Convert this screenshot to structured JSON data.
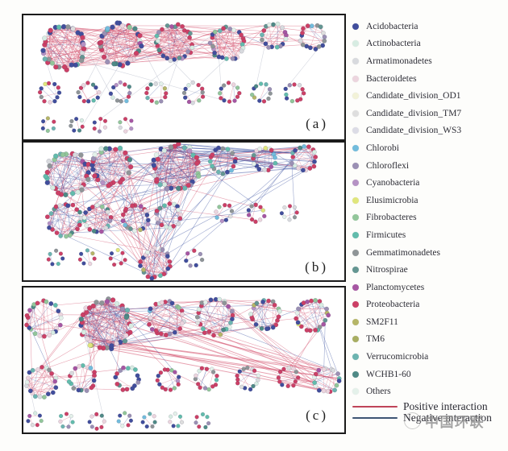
{
  "figure": {
    "watermark_text": "中国环联"
  },
  "legend": {
    "taxa": [
      {
        "name": "Acidobacteria",
        "color": "#414e9c"
      },
      {
        "name": "Actinobacteria",
        "color": "#d7ece2"
      },
      {
        "name": "Armatimonadetes",
        "color": "#d8dade"
      },
      {
        "name": "Bacteroidetes",
        "color": "#ecd5de"
      },
      {
        "name": "Candidate_division_OD1",
        "color": "#f2f2d8"
      },
      {
        "name": "Candidate_division_TM7",
        "color": "#dedede"
      },
      {
        "name": "Candidate_division_WS3",
        "color": "#dcdce6"
      },
      {
        "name": "Chlorobi",
        "color": "#72bcdc"
      },
      {
        "name": "Chloroflexi",
        "color": "#9b90b4"
      },
      {
        "name": "Cyanobacteria",
        "color": "#b592c4"
      },
      {
        "name": "Elusimicrobia",
        "color": "#e0e67c"
      },
      {
        "name": "Fibrobacteres",
        "color": "#92c69a"
      },
      {
        "name": "Firmicutes",
        "color": "#62bcac"
      },
      {
        "name": "Gemmatimonadetes",
        "color": "#8f9597"
      },
      {
        "name": "Nitrospirae",
        "color": "#649692"
      },
      {
        "name": "Planctomycetes",
        "color": "#a656a2"
      },
      {
        "name": "Proteobacteria",
        "color": "#cc4066"
      },
      {
        "name": "SM2F11",
        "color": "#b6b668"
      },
      {
        "name": "TM6",
        "color": "#a8ae62"
      },
      {
        "name": "Verrucomicrobia",
        "color": "#6cb4b0"
      },
      {
        "name": "WCHB1-60",
        "color": "#4f8a86"
      },
      {
        "name": "Others",
        "color": "#e4f1ea"
      }
    ],
    "positive_label": "Positive interaction",
    "negative_label": "Negative interaction",
    "positive_color": "#bf4458",
    "negative_color": "#3e5574"
  },
  "network": {
    "edge_positive_color": "#d4536f",
    "edge_negative_color": "#4a5fa8",
    "edge_gray_color": "#a9afc0",
    "node_palette": [
      [
        "#cc4066",
        30
      ],
      [
        "#414e9c",
        17
      ],
      [
        "#ecd5de",
        7
      ],
      [
        "#d7ece2",
        5
      ],
      [
        "#8f9597",
        6
      ],
      [
        "#62bcac",
        5
      ],
      [
        "#9b90b4",
        5
      ],
      [
        "#4f8a86",
        4
      ],
      [
        "#92c69a",
        4
      ],
      [
        "#a656a2",
        3
      ],
      [
        "#6cb4b0",
        3
      ],
      [
        "#e4f1ea",
        3
      ],
      [
        "#d8dade",
        3
      ],
      [
        "#b592c4",
        2
      ],
      [
        "#649692",
        2
      ],
      [
        "#72bcdc",
        1
      ],
      [
        "#e0e67c",
        1
      ],
      [
        "#b6b668",
        1
      ],
      [
        "#dedede",
        1
      ]
    ],
    "panels": [
      {
        "label": "(a)",
        "seed": 11,
        "view": [
          398,
          154
        ],
        "modules": [
          [
            50,
            40,
            26,
            34,
            130,
            0.93
          ],
          [
            120,
            36,
            25,
            32,
            110,
            0.9
          ],
          [
            187,
            34,
            22,
            28,
            80,
            0.9
          ],
          [
            253,
            35,
            20,
            26,
            70,
            0.88
          ],
          [
            311,
            26,
            15,
            17,
            28,
            0.85
          ],
          [
            359,
            27,
            15,
            17,
            28,
            0.85
          ],
          [
            32,
            96,
            12,
            12,
            5,
            0.6
          ],
          [
            81,
            96,
            12,
            12,
            5,
            0.65
          ],
          [
            121,
            96,
            12,
            12,
            5,
            0.6
          ],
          [
            165,
            96,
            12,
            12,
            5,
            0.6
          ],
          [
            211,
            96,
            12,
            12,
            5,
            0.6
          ],
          [
            255,
            96,
            12,
            12,
            5,
            0.65
          ],
          [
            295,
            96,
            11,
            11,
            4,
            0.5
          ],
          [
            336,
            96,
            11,
            11,
            4,
            0.5
          ],
          [
            31,
            136,
            8,
            6,
            2,
            0.5
          ],
          [
            66,
            136,
            8,
            7,
            2,
            0.5
          ],
          [
            95,
            136,
            8,
            6,
            2,
            0.5
          ],
          [
            127,
            136,
            8,
            6,
            2,
            0.5
          ]
        ],
        "links": [
          [
            0,
            1,
            12,
            0.95
          ],
          [
            0,
            2,
            9,
            0.95
          ],
          [
            0,
            3,
            6,
            0.92
          ],
          [
            1,
            2,
            9,
            0.92
          ],
          [
            1,
            3,
            6,
            0.92
          ],
          [
            2,
            3,
            6,
            0.9
          ],
          [
            3,
            4,
            4,
            0.9
          ],
          [
            4,
            5,
            3,
            0.85
          ],
          [
            2,
            4,
            3,
            0.9
          ],
          [
            0,
            5,
            2,
            0.9
          ],
          [
            1,
            5,
            2,
            0.9
          ],
          [
            0,
            6,
            1,
            0,
            "gray"
          ],
          [
            0,
            8,
            1,
            0,
            "gray"
          ],
          [
            1,
            7,
            1,
            0,
            "gray"
          ],
          [
            1,
            9,
            1,
            0,
            "gray"
          ],
          [
            2,
            9,
            1,
            0,
            "gray"
          ],
          [
            2,
            10,
            1,
            0,
            "gray"
          ],
          [
            3,
            10,
            1,
            0,
            "gray"
          ],
          [
            3,
            11,
            1,
            0,
            "gray"
          ],
          [
            4,
            12,
            1,
            0,
            "gray"
          ],
          [
            5,
            13,
            1,
            0,
            "gray"
          ],
          [
            1,
            15,
            1,
            0,
            "gray"
          ],
          [
            3,
            16,
            1,
            0,
            "gray"
          ],
          [
            0,
            11,
            1,
            0,
            "gray"
          ]
        ]
      },
      {
        "label": "(b)",
        "seed": 23,
        "view": [
          398,
          171
        ],
        "modules": [
          [
            55,
            38,
            26,
            30,
            100,
            0.55
          ],
          [
            109,
            29,
            23,
            28,
            90,
            0.55
          ],
          [
            190,
            31,
            28,
            34,
            160,
            0.5
          ],
          [
            247,
            22,
            16,
            18,
            36,
            0.55
          ],
          [
            299,
            20,
            14,
            16,
            30,
            0.5
          ],
          [
            348,
            20,
            15,
            17,
            32,
            0.5
          ],
          [
            51,
            96,
            20,
            22,
            55,
            0.6
          ],
          [
            92,
            95,
            16,
            18,
            38,
            0.55
          ],
          [
            139,
            94,
            16,
            18,
            36,
            0.55
          ],
          [
            180,
            91,
            15,
            17,
            32,
            0.55
          ],
          [
            249,
            87,
            10,
            9,
            4,
            0.5
          ],
          [
            289,
            88,
            10,
            10,
            5,
            0.6
          ],
          [
            330,
            87,
            9,
            8,
            4,
            0.5
          ],
          [
            40,
            143,
            9,
            7,
            3,
            0.5
          ],
          [
            79,
            143,
            9,
            7,
            3,
            0.5
          ],
          [
            117,
            143,
            9,
            7,
            3,
            0.5
          ],
          [
            164,
            150,
            18,
            22,
            60,
            0.7
          ],
          [
            211,
            144,
            10,
            7,
            3,
            0.5
          ]
        ],
        "links": [
          [
            0,
            1,
            6,
            0.5
          ],
          [
            0,
            2,
            8,
            0.5
          ],
          [
            1,
            2,
            8,
            0.5
          ],
          [
            2,
            3,
            6,
            0.4
          ],
          [
            2,
            4,
            5,
            0.3
          ],
          [
            2,
            5,
            14,
            0.1,
            null,
            1.0
          ],
          [
            3,
            5,
            3,
            0.4
          ],
          [
            4,
            5,
            3,
            0.5
          ],
          [
            3,
            4,
            2,
            0.5
          ],
          [
            0,
            6,
            4,
            0.5
          ],
          [
            1,
            6,
            4,
            0.45
          ],
          [
            2,
            6,
            5,
            0.45
          ],
          [
            2,
            7,
            5,
            0.5
          ],
          [
            2,
            8,
            5,
            0.5
          ],
          [
            2,
            9,
            4,
            0.5
          ],
          [
            0,
            8,
            3,
            0.5
          ],
          [
            1,
            7,
            3,
            0.5
          ],
          [
            1,
            8,
            3,
            0.45
          ],
          [
            0,
            7,
            2,
            0.5
          ],
          [
            0,
            16,
            4,
            0.6
          ],
          [
            1,
            16,
            5,
            0.55
          ],
          [
            2,
            16,
            8,
            0.5
          ],
          [
            3,
            16,
            4,
            0.5
          ],
          [
            5,
            16,
            3,
            0.4
          ],
          [
            6,
            16,
            3,
            0.6
          ],
          [
            7,
            16,
            3,
            0.5
          ],
          [
            8,
            16,
            3,
            0.5
          ],
          [
            9,
            16,
            3,
            0.5
          ],
          [
            2,
            11,
            2,
            0.5
          ],
          [
            5,
            11,
            2,
            0.3
          ],
          [
            9,
            11,
            2,
            0.6
          ],
          [
            5,
            12,
            1,
            0.4
          ],
          [
            6,
            9,
            2,
            0.5
          ],
          [
            7,
            9,
            2,
            0.5
          ]
        ]
      },
      {
        "label": "(c)",
        "seed": 37,
        "view": [
          398,
          180
        ],
        "modules": [
          [
            25,
            39,
            21,
            24,
            55,
            0.75
          ],
          [
            102,
            46,
            30,
            38,
            170,
            0.5
          ],
          [
            177,
            38,
            21,
            26,
            60,
            0.6
          ],
          [
            237,
            36,
            22,
            26,
            60,
            0.6
          ],
          [
            300,
            34,
            18,
            22,
            40,
            0.6
          ],
          [
            358,
            35,
            19,
            23,
            45,
            0.6
          ],
          [
            22,
            118,
            18,
            20,
            40,
            0.85
          ],
          [
            73,
            113,
            16,
            18,
            22,
            0.7
          ],
          [
            129,
            113,
            14,
            16,
            10,
            0.6
          ],
          [
            180,
            114,
            13,
            15,
            8,
            0.55
          ],
          [
            227,
            113,
            13,
            15,
            8,
            0.6
          ],
          [
            278,
            113,
            13,
            15,
            8,
            0.6
          ],
          [
            328,
            111,
            12,
            12,
            6,
            0.5
          ],
          [
            376,
            115,
            15,
            18,
            16,
            0.6
          ],
          [
            14,
            164,
            8,
            7,
            2,
            0.5
          ],
          [
            53,
            165,
            8,
            7,
            3,
            0.5
          ],
          [
            91,
            166,
            9,
            8,
            3,
            0.5
          ],
          [
            126,
            164,
            8,
            7,
            2,
            0.5
          ],
          [
            156,
            165,
            8,
            7,
            2,
            0.5
          ],
          [
            189,
            165,
            8,
            7,
            2,
            0.5
          ],
          [
            222,
            166,
            8,
            7,
            2,
            0.5
          ]
        ],
        "links": [
          [
            0,
            1,
            4,
            0.8
          ],
          [
            1,
            2,
            8,
            0.6
          ],
          [
            1,
            3,
            6,
            0.65
          ],
          [
            2,
            3,
            4,
            0.6
          ],
          [
            3,
            4,
            4,
            0.6
          ],
          [
            4,
            5,
            3,
            0.6
          ],
          [
            2,
            4,
            3,
            0.7
          ],
          [
            1,
            4,
            3,
            0.6
          ],
          [
            1,
            13,
            12,
            0.95,
            null,
            1.0
          ],
          [
            2,
            13,
            6,
            0.9
          ],
          [
            3,
            13,
            4,
            0.85
          ],
          [
            5,
            13,
            3,
            0.5
          ],
          [
            1,
            6,
            4,
            0.8
          ],
          [
            1,
            7,
            4,
            0.75
          ],
          [
            0,
            6,
            3,
            0.85
          ],
          [
            6,
            7,
            3,
            0.9
          ],
          [
            7,
            8,
            2,
            0.7
          ],
          [
            1,
            8,
            2,
            0.7
          ],
          [
            1,
            9,
            2,
            0.75
          ],
          [
            1,
            16,
            1,
            0,
            "gray"
          ],
          [
            5,
            12,
            2,
            0.5
          ],
          [
            13,
            12,
            2,
            0.5
          ],
          [
            9,
            10,
            1,
            0.6
          ],
          [
            6,
            14,
            1,
            0,
            "gray"
          ]
        ]
      }
    ]
  }
}
